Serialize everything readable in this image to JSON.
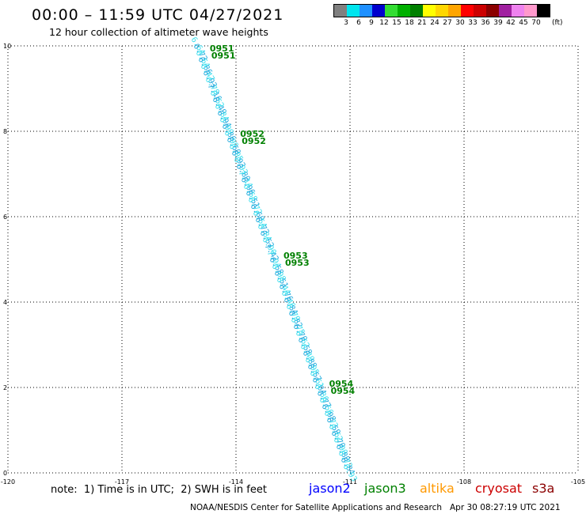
{
  "title": "00:00 – 11:59 UTC 04/27/2021",
  "subtitle": "12 hour collection of altimeter wave heights",
  "legend": {
    "unit": "(ft)",
    "labels": [
      "3",
      "6",
      "9",
      "12",
      "15",
      "18",
      "21",
      "24",
      "27",
      "30",
      "33",
      "36",
      "39",
      "42",
      "45",
      "70"
    ],
    "colors": [
      "#808080",
      "#00e5ee",
      "#1e90ff",
      "#0000cd",
      "#33dd33",
      "#00b000",
      "#008000",
      "#ffff00",
      "#ffd700",
      "#ffa500",
      "#ff0000",
      "#cc0000",
      "#8b0000",
      "#a020a0",
      "#ee82ee",
      "#ff99cc",
      "#000000"
    ]
  },
  "map": {
    "lon_range": [
      -120,
      -105
    ],
    "lat_range": [
      0,
      10
    ],
    "x_ticks": [
      "-120",
      "-117",
      "-114",
      "-111",
      "-108",
      "-105"
    ],
    "y_ticks": [
      "0",
      "2",
      "4",
      "6",
      "8",
      "10"
    ],
    "grid": "dotted"
  },
  "track": {
    "satellite": "jason2",
    "start": {
      "lon": -115.0,
      "lat": 10.0
    },
    "end": {
      "lon": -111.0,
      "lat": 0.0
    },
    "swh_ft": [
      "6.64",
      "6.73",
      "6.64",
      "6.86",
      "6.47",
      "6.93",
      "6.78",
      "7.16",
      "6.52",
      "6.49",
      "6.84",
      "6.94",
      "6.99",
      "6.86",
      "6.99",
      "6.60",
      "6.95",
      "6.93",
      "6.93",
      "6.80",
      "7.14",
      "6.96",
      "6.58",
      "6.51",
      "6.72",
      "6.60",
      "6.54",
      "6.73",
      "6.84",
      "6.52",
      "6.90",
      "7.42",
      "7.04",
      "6.58",
      "6.98",
      "6.51",
      "6.44",
      "6.76",
      "6.46",
      "6.84",
      "6.79",
      "6.82",
      "6.75",
      "6.70",
      "6.62",
      "6.58",
      "6.49",
      "6.88",
      "6.95",
      "6.57",
      "6.61",
      "6.84",
      "6.36",
      "6.77",
      "6.56",
      "6.98",
      "6.73",
      "6.59",
      "6.62",
      "6.70",
      "6.90",
      "6.80",
      "6.73",
      "6.84",
      "6.93"
    ],
    "time_labels": [
      {
        "text": "0951",
        "lat": 9.85
      },
      {
        "text": "0952",
        "lat": 7.85
      },
      {
        "text": "0953",
        "lat": 5.0
      },
      {
        "text": "0954",
        "lat": 2.0
      }
    ]
  },
  "note": "note:  1) Time is in UTC;  2) SWH is in feet",
  "satellites": [
    {
      "name": "jason2",
      "color": "#0000ff"
    },
    {
      "name": "jason3",
      "color": "#008000"
    },
    {
      "name": "altika",
      "color": "#ff9900"
    },
    {
      "name": "cryosat",
      "color": "#cc0000"
    },
    {
      "name": "s3a",
      "color": "#8b0000"
    }
  ],
  "credit": "NOAA/NESDIS Center for Satellite Applications and Research",
  "created": "Apr 30 08:27:19 UTC 2021"
}
